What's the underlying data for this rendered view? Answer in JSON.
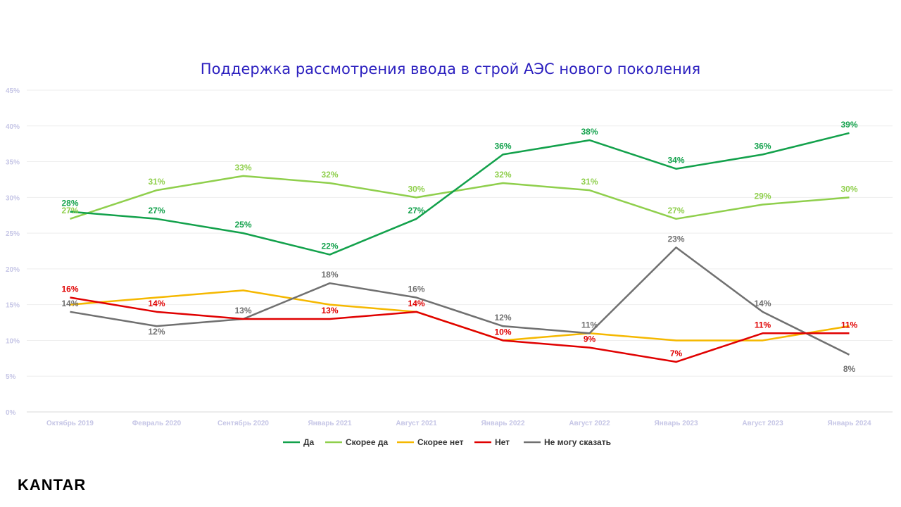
{
  "logo_text": "KANTAR",
  "chart_data": {
    "type": "line",
    "title": "Поддержка рассмотрения ввода в строй АЭС нового поколения",
    "categories": [
      "Октябрь 2019",
      "Февраль 2020",
      "Сентябрь 2020",
      "Январь 2021",
      "Август 2021",
      "Январь 2022",
      "Август 2022",
      "Январь 2023",
      "Август 2023",
      "Январь 2024"
    ],
    "ylim": [
      0,
      45
    ],
    "yticks": [
      0,
      5,
      10,
      15,
      20,
      25,
      30,
      35,
      40,
      45
    ],
    "ytick_labels": [
      "0%",
      "5%",
      "10%",
      "15%",
      "20%",
      "25%",
      "30%",
      "35%",
      "40%",
      "45%"
    ],
    "grid": true,
    "legend_position": "bottom",
    "series": [
      {
        "name": "Да",
        "color": "#12a14b",
        "values": [
          28,
          27,
          25,
          22,
          27,
          36,
          38,
          34,
          36,
          39
        ],
        "labels": [
          "28%",
          "27%",
          "25%",
          "22%",
          "27%",
          "36%",
          "38%",
          "34%",
          "36%",
          "39%"
        ]
      },
      {
        "name": "Скорее да",
        "color": "#8fcf4c",
        "values": [
          27,
          31,
          33,
          32,
          30,
          32,
          31,
          27,
          29,
          30
        ],
        "labels": [
          "27%",
          "31%",
          "33%",
          "32%",
          "30%",
          "32%",
          "31%",
          "27%",
          "29%",
          "30%"
        ]
      },
      {
        "name": "Скорее нет",
        "color": "#f5b800",
        "values": [
          15,
          16,
          17,
          15,
          14,
          10,
          11,
          10,
          10,
          12
        ],
        "labels": []
      },
      {
        "name": "Нет",
        "color": "#e00000",
        "values": [
          16,
          14,
          13,
          13,
          14,
          10,
          9,
          7,
          11,
          11
        ],
        "labels": [
          "16%",
          "14%",
          "",
          "13%",
          "14%",
          "10%",
          "9%",
          "7%",
          "11%",
          "11%"
        ]
      },
      {
        "name": "Не могу сказать",
        "color": "#707070",
        "values": [
          14,
          12,
          13,
          18,
          16,
          12,
          11,
          23,
          14,
          8
        ],
        "labels": [
          "14%",
          "12%",
          "13%",
          "18%",
          "16%",
          "12%",
          "11%",
          "23%",
          "14%",
          "8%"
        ]
      }
    ]
  }
}
